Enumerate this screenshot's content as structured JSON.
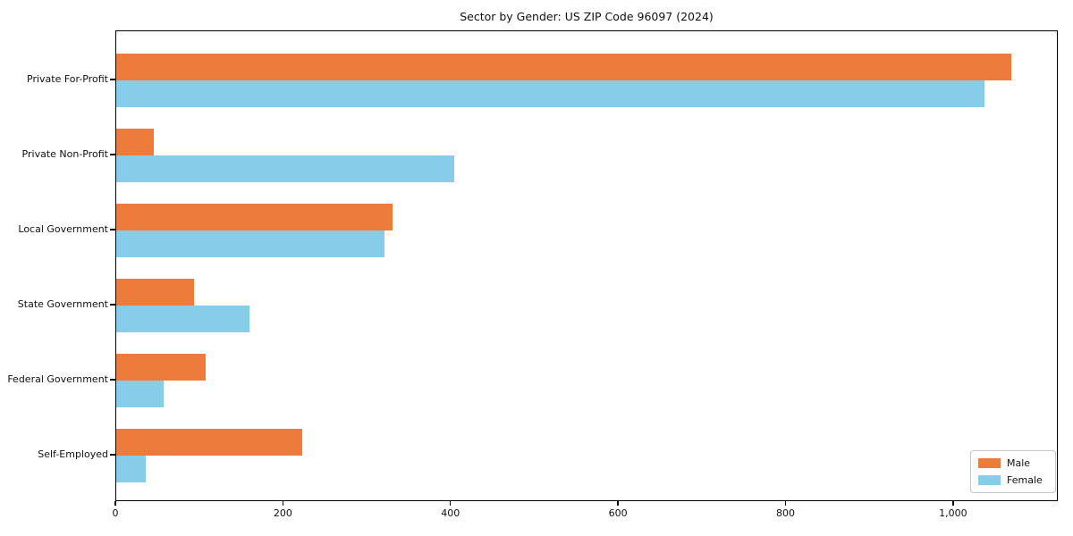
{
  "title": "Sector by Gender: US ZIP Code 96097 (2024)",
  "chart_data": {
    "type": "bar",
    "orientation": "horizontal",
    "title": "Sector by Gender: US ZIP Code 96097 (2024)",
    "categories": [
      "Private For-Profit",
      "Private Non-Profit",
      "Local Government",
      "State Government",
      "Federal Government",
      "Self-Employed"
    ],
    "series": [
      {
        "name": "Male",
        "color": "#ec7b3c",
        "values": [
          1070,
          45,
          330,
          93,
          107,
          222
        ]
      },
      {
        "name": "Female",
        "color": "#87cde9",
        "values": [
          1038,
          404,
          321,
          159,
          57,
          35
        ]
      }
    ],
    "xlabel": "",
    "ylabel": "",
    "xlim": [
      0,
      1125
    ],
    "x_ticks": [
      0,
      200,
      400,
      600,
      800,
      1000
    ],
    "x_tick_labels": [
      "0",
      "200",
      "400",
      "600",
      "800",
      "1,000"
    ],
    "grid": false,
    "legend_position": "lower right",
    "legend_entries": [
      "Male",
      "Female"
    ]
  }
}
